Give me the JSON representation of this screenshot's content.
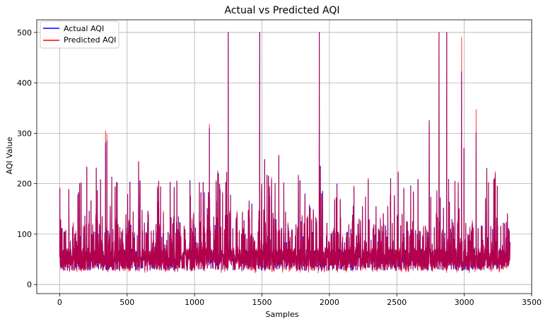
{
  "chart_data": {
    "type": "line",
    "title": "Actual vs Predicted AQI",
    "xlabel": "Samples",
    "ylabel": "AQI Value",
    "xlim": [
      -170,
      3500
    ],
    "ylim": [
      -18,
      525
    ],
    "xticks": [
      0,
      500,
      1000,
      1500,
      2000,
      2500,
      3000,
      3500
    ],
    "yticks": [
      0,
      100,
      200,
      300,
      400,
      500
    ],
    "grid": true,
    "legend_position": "top-left",
    "n_samples": 3340,
    "series": [
      {
        "name": "Actual AQI",
        "color": "#0000ff",
        "peaks": [
          [
            1250,
            500
          ],
          [
            1483,
            500
          ],
          [
            1925,
            500
          ],
          [
            2813,
            500
          ],
          [
            2870,
            500
          ],
          [
            2980,
            422
          ],
          [
            2998,
            270
          ],
          [
            3088,
            300
          ],
          [
            2740,
            325
          ],
          [
            1110,
            310
          ],
          [
            340,
            280
          ],
          [
            350,
            285
          ],
          [
            1625,
            255
          ],
          [
            1520,
            248
          ],
          [
            585,
            244
          ],
          [
            2510,
            222
          ],
          [
            1950,
            185
          ]
        ]
      },
      {
        "name": "Predicted AQI",
        "color": "#ff0000",
        "peaks": [
          [
            1250,
            500
          ],
          [
            1483,
            500
          ],
          [
            1925,
            497
          ],
          [
            2813,
            500
          ],
          [
            2870,
            500
          ],
          [
            2980,
            490
          ],
          [
            2998,
            270
          ],
          [
            3088,
            347
          ],
          [
            2740,
            325
          ],
          [
            1110,
            318
          ],
          [
            340,
            305
          ],
          [
            350,
            298
          ],
          [
            1625,
            257
          ],
          [
            1520,
            248
          ],
          [
            585,
            244
          ],
          [
            2510,
            224
          ],
          [
            1950,
            180
          ]
        ]
      }
    ]
  }
}
